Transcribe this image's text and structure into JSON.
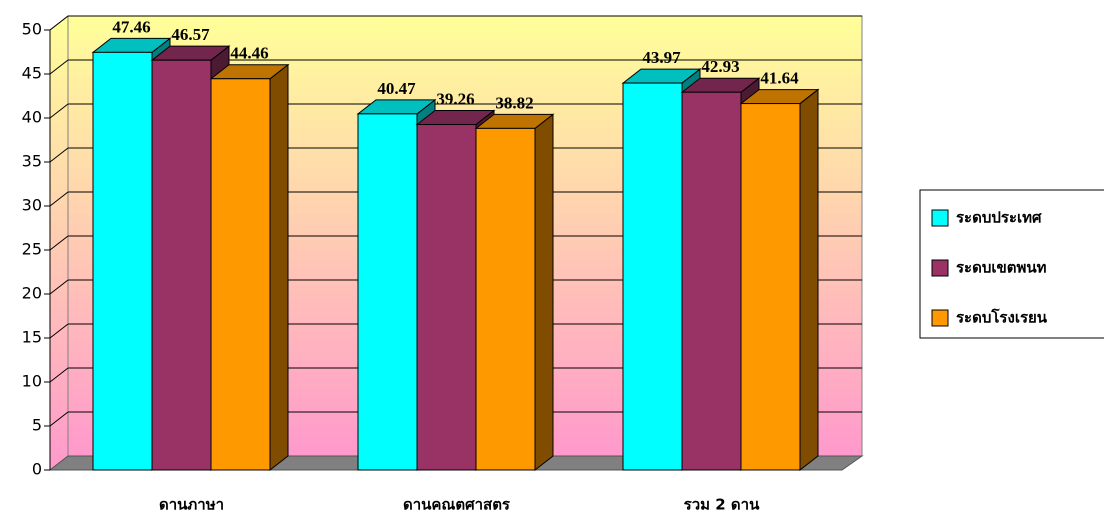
{
  "chart_data": {
    "type": "bar3d",
    "categories": [
      "ดานภาษา",
      "ดานคณตศาสตร",
      "รวม 2 ดาน"
    ],
    "series": [
      {
        "name": "ระดบประเทศ",
        "color": "#00ffff",
        "values": [
          47.46,
          40.47,
          43.97
        ]
      },
      {
        "name": "ระดบเขตพนท",
        "color": "#993366",
        "values": [
          46.57,
          39.26,
          42.93
        ]
      },
      {
        "name": "ระดบโรงเรยน",
        "color": "#ff9900",
        "values": [
          44.46,
          38.82,
          41.64
        ]
      }
    ],
    "ylim": [
      0,
      50
    ],
    "yticks": [
      0,
      5,
      10,
      15,
      20,
      25,
      30,
      35,
      40,
      45,
      50
    ],
    "grid": true
  }
}
